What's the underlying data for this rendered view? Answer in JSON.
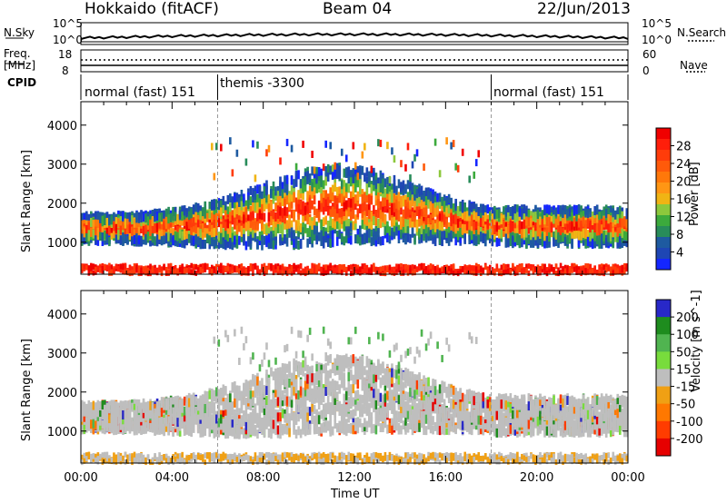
{
  "header": {
    "station": "Hokkaido (fitACF)",
    "beam": "Beam 04",
    "date": "22/Jun/2013"
  },
  "noise_panel": {
    "left_label": "N.Sky",
    "left_ticks": [
      "10^5",
      "10^0"
    ],
    "right_label": "N.Search",
    "right_ticks": [
      "10^5",
      "10^0"
    ]
  },
  "freq_panel": {
    "left_label_1": "Freq.",
    "left_label_2": "[MHz]",
    "left_ticks": [
      "18",
      "8"
    ],
    "right_label": "Nave",
    "right_ticks": [
      "60",
      "0"
    ]
  },
  "cpid_panel": {
    "label": "CPID",
    "segments": [
      "normal (fast) 151",
      "themis -3300",
      "normal (fast) 151"
    ]
  },
  "chart_data": [
    {
      "type": "heatmap",
      "title": "",
      "xlabel": "",
      "ylabel": "Slant Range [km]",
      "x_ticks": [
        "00:00",
        "04:00",
        "08:00",
        "12:00",
        "16:00",
        "20:00",
        "00:00"
      ],
      "xlim_hours": [
        0,
        24
      ],
      "y_ticks": [
        1000,
        2000,
        3000,
        4000
      ],
      "ylim_km": [
        180,
        4600
      ],
      "colorbar": {
        "label": "Power [dB]",
        "ticks": [
          4,
          8,
          12,
          16,
          20,
          24,
          28
        ],
        "range": [
          0,
          32
        ],
        "colors": [
          "#1426ff",
          "#1e46b4",
          "#1e5aa0",
          "#288c5a",
          "#3caa3c",
          "#8cc83c",
          "#f0b414",
          "#ff9614",
          "#ff780a",
          "#ff5a0a",
          "#ff3c0a",
          "#ff1e0a",
          "#f00000"
        ]
      }
    },
    {
      "type": "heatmap",
      "title": "",
      "xlabel": "Time UT",
      "ylabel": "Slant Range [km]",
      "x_ticks": [
        "00:00",
        "04:00",
        "08:00",
        "12:00",
        "16:00",
        "20:00",
        "00:00"
      ],
      "xlim_hours": [
        0,
        24
      ],
      "y_ticks": [
        1000,
        2000,
        3000,
        4000
      ],
      "ylim_km": [
        180,
        4600
      ],
      "colorbar": {
        "label": "Velocity [m s^-1]",
        "ticks": [
          200,
          100,
          50,
          15,
          -15,
          -50,
          -100,
          -200
        ],
        "colors": [
          "#2828c8",
          "#1e8c1e",
          "#50b450",
          "#78dc3c",
          "#bebebe",
          "#f0a014",
          "#ff7800",
          "#ff3c00",
          "#e60000"
        ]
      }
    }
  ]
}
